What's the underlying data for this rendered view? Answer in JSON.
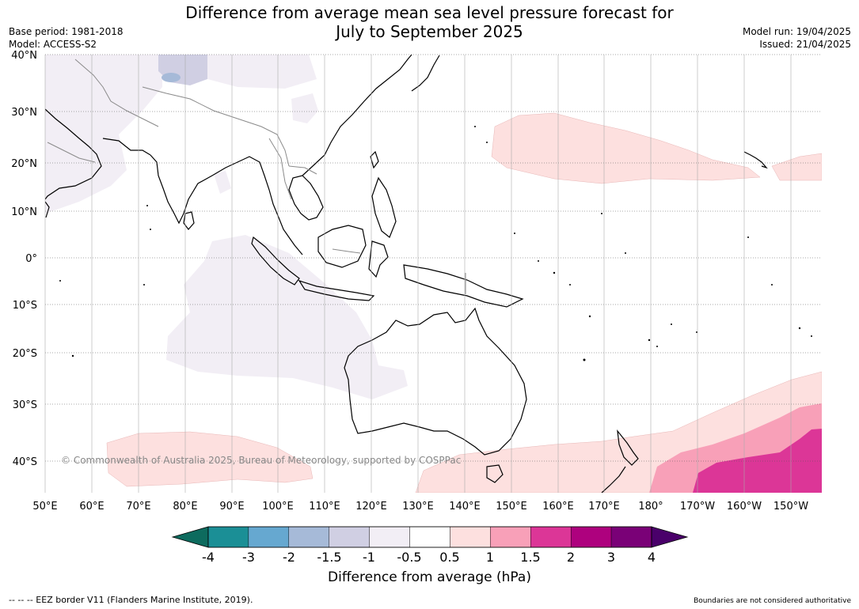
{
  "title_line1": "Difference from average mean sea level pressure forecast for",
  "title_line2": "July to September 2025",
  "meta_left": [
    "Base period: 1981-2018",
    "Model: ACCESS-S2"
  ],
  "meta_right": [
    "Model run: 19/04/2025",
    "Issued: 21/04/2025"
  ],
  "copyright": "© Commonwealth of Australia 2025, Bureau of Meteorology, supported by COSPPac",
  "lat_labels": [
    "40°N",
    "30°N",
    "20°N",
    "10°N",
    "0°",
    "10°S",
    "20°S",
    "30°S",
    "40°S"
  ],
  "lon_labels": [
    "50°E",
    "60°E",
    "70°E",
    "80°E",
    "90°E",
    "100°E",
    "110°E",
    "120°E",
    "130°E",
    "140°E",
    "150°E",
    "160°E",
    "170°E",
    "180°",
    "170°W",
    "160°W",
    "150°W"
  ],
  "colorbar": {
    "title": "Difference from average (hPa)",
    "ticks": [
      "-4",
      "-3",
      "-2",
      "-1.5",
      "-1",
      "-0.5",
      "0.5",
      "1",
      "1.5",
      "2",
      "3",
      "4"
    ],
    "colors": [
      "#1b8f96",
      "#66a8d0",
      "#a6bad8",
      "#d0cfe3",
      "#f2eef5",
      "#ffffff",
      "#fde0df",
      "#f8a0b8",
      "#dc3697",
      "#ae017e",
      "#7a0177"
    ],
    "under_color": "#0d6b5e",
    "over_color": "#4a006a"
  },
  "footer_left": "--  --  -- EEZ border V11 (Flanders Marine Institute, 2019).",
  "footer_right": "Boundaries are not considered authoritative"
}
